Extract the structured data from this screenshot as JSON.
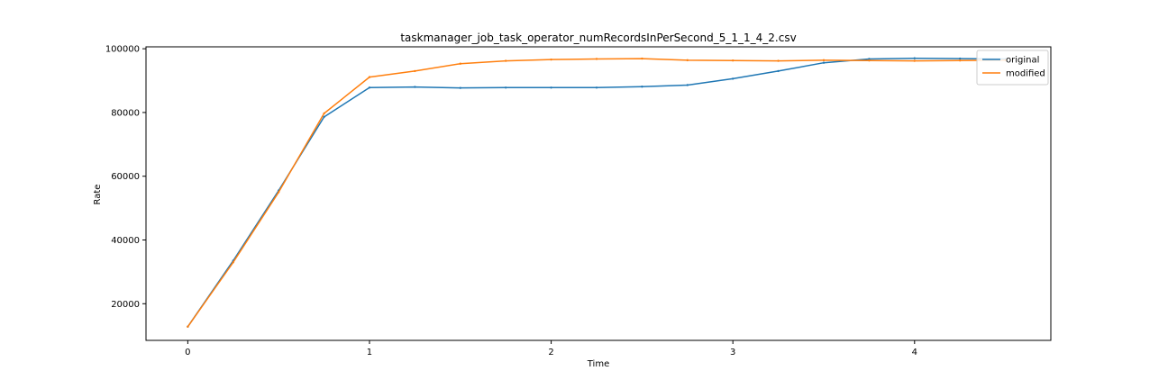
{
  "chart_data": {
    "type": "line",
    "title": "taskmanager_job_task_operator_numRecordsInPerSecond_5_1_1_4_2.csv",
    "xlabel": "Time",
    "ylabel": "Rate",
    "xlim": [
      -0.23,
      4.75
    ],
    "ylim": [
      8500,
      100600
    ],
    "xticks": [
      0,
      1,
      2,
      3,
      4
    ],
    "yticks": [
      20000,
      40000,
      60000,
      80000,
      100000
    ],
    "grid": false,
    "legend_position": "top-right",
    "series": [
      {
        "name": "original",
        "color": "#1f77b4",
        "x": [
          0,
          0.25,
          0.5,
          0.75,
          1.0,
          1.25,
          1.5,
          1.75,
          2.0,
          2.25,
          2.5,
          2.75,
          3.0,
          3.25,
          3.5,
          3.75,
          4.0,
          4.25,
          4.5
        ],
        "y": [
          12800,
          33500,
          55500,
          78600,
          87800,
          88000,
          87700,
          87800,
          87800,
          87800,
          88100,
          88600,
          90600,
          93000,
          95600,
          96800,
          97000,
          96900,
          96800
        ]
      },
      {
        "name": "modified",
        "color": "#ff7f0e",
        "x": [
          0,
          0.25,
          0.5,
          0.75,
          1.0,
          1.25,
          1.5,
          1.75,
          2.0,
          2.25,
          2.5,
          2.75,
          3.0,
          3.25,
          3.5,
          3.75,
          4.0,
          4.25,
          4.5
        ],
        "y": [
          12800,
          33000,
          55000,
          79700,
          91100,
          93000,
          95300,
          96200,
          96600,
          96800,
          96900,
          96400,
          96300,
          96200,
          96400,
          96300,
          96200,
          96300,
          96400
        ]
      }
    ]
  }
}
